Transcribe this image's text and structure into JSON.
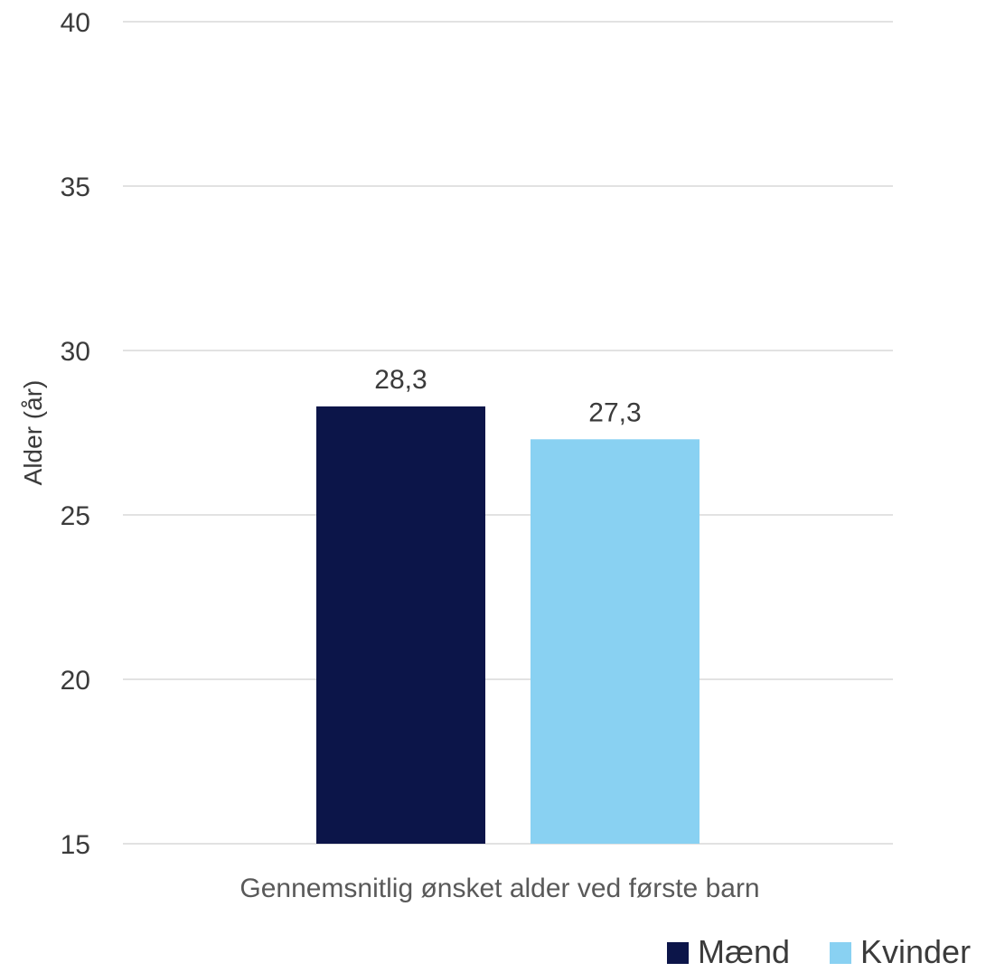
{
  "chart_data": {
    "type": "bar",
    "categories": [
      "Gennemsnitlig ønsket alder ved første barn"
    ],
    "series": [
      {
        "name": "Mænd",
        "values": [
          28.3
        ],
        "labels": [
          "28,3"
        ],
        "color": "#0c1549"
      },
      {
        "name": "Kvinder",
        "values": [
          27.3
        ],
        "labels": [
          "27,3"
        ],
        "color": "#89d1f2"
      }
    ],
    "title": "",
    "xlabel": "",
    "ylabel": "Alder (år)",
    "ylim": [
      15,
      40
    ],
    "yticks": [
      15,
      20,
      25,
      30,
      35,
      40
    ],
    "grid": true,
    "legend": "bottom-right"
  }
}
